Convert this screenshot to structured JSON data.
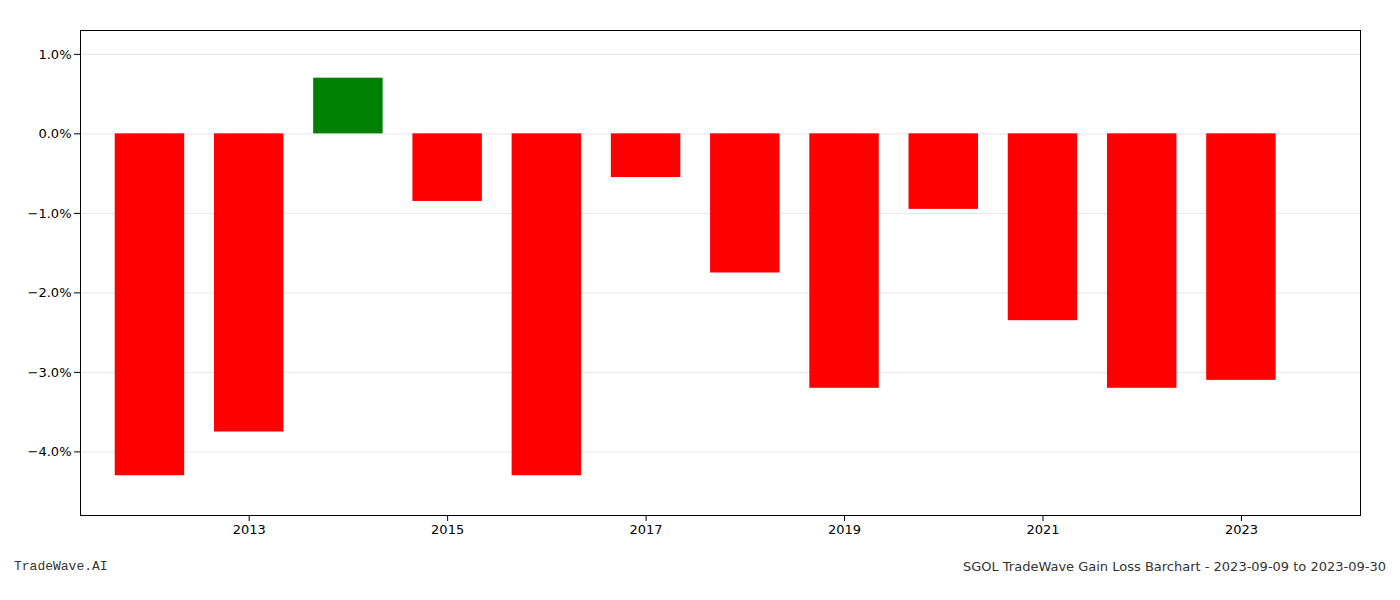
{
  "chart_data": {
    "type": "bar",
    "x": [
      2012,
      2013,
      2014,
      2015,
      2016,
      2017,
      2018,
      2019,
      2020,
      2021,
      2022,
      2023
    ],
    "values": [
      -4.3,
      -3.75,
      0.7,
      -0.85,
      -4.3,
      -0.55,
      -1.75,
      -3.2,
      -0.95,
      -2.35,
      -3.2,
      -3.1
    ],
    "colors": [
      "#ff0000",
      "#ff0000",
      "#008000",
      "#ff0000",
      "#ff0000",
      "#ff0000",
      "#ff0000",
      "#ff0000",
      "#ff0000",
      "#ff0000",
      "#ff0000",
      "#ff0000"
    ],
    "xlim": [
      2011.3,
      2024.2
    ],
    "xticks": [
      2013,
      2015,
      2017,
      2019,
      2021,
      2023
    ],
    "ylim": [
      -4.8,
      1.3
    ],
    "yticks": [
      {
        "value": 1.0,
        "label": "1.0%"
      },
      {
        "value": 0.0,
        "label": "0.0%"
      },
      {
        "value": -1.0,
        "label": "−1.0%"
      },
      {
        "value": -2.0,
        "label": "−2.0%"
      },
      {
        "value": -3.0,
        "label": "−3.0%"
      },
      {
        "value": -4.0,
        "label": "−4.0%"
      }
    ],
    "grid": true,
    "annotations": [
      "TradeWave.AI",
      "SGOL TradeWave Gain Loss Barchart - 2023-09-09 to 2023-09-30"
    ]
  }
}
